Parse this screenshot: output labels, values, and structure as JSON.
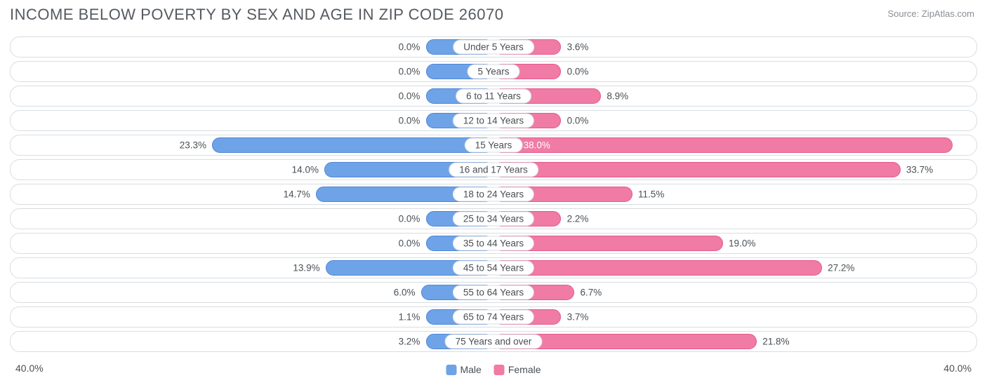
{
  "title": "INCOME BELOW POVERTY BY SEX AND AGE IN ZIP CODE 26070",
  "source": "Source: ZipAtlas.com",
  "axis_max_label": "40.0%",
  "legend": {
    "male": "Male",
    "female": "Female"
  },
  "chart": {
    "type": "diverging-bar",
    "axis_max": 40.0,
    "min_bar_pct": 14.0,
    "track_width_pct": 14.0,
    "colors": {
      "male_bar": "#6ea3e8",
      "male_border": "#4f86d6",
      "male_track_fill": "#e2edfa",
      "male_track_border": "#c9dbf2",
      "female_bar": "#f07ba4",
      "female_border": "#e55a8c",
      "female_track_fill": "#fde7ef",
      "female_track_border": "#f5cddd",
      "row_border": "#d8dde2",
      "text": "#4a4f54",
      "title_text": "#555a5f",
      "source_text": "#8a8f94",
      "background": "#ffffff"
    },
    "rows": [
      {
        "age": "Under 5 Years",
        "male": 0.0,
        "female": 3.6
      },
      {
        "age": "5 Years",
        "male": 0.0,
        "female": 0.0
      },
      {
        "age": "6 to 11 Years",
        "male": 0.0,
        "female": 8.9
      },
      {
        "age": "12 to 14 Years",
        "male": 0.0,
        "female": 0.0
      },
      {
        "age": "15 Years",
        "male": 23.3,
        "female": 38.0
      },
      {
        "age": "16 and 17 Years",
        "male": 14.0,
        "female": 33.7
      },
      {
        "age": "18 to 24 Years",
        "male": 14.7,
        "female": 11.5
      },
      {
        "age": "25 to 34 Years",
        "male": 0.0,
        "female": 2.2
      },
      {
        "age": "35 to 44 Years",
        "male": 0.0,
        "female": 19.0
      },
      {
        "age": "45 to 54 Years",
        "male": 13.9,
        "female": 27.2
      },
      {
        "age": "55 to 64 Years",
        "male": 6.0,
        "female": 6.7
      },
      {
        "age": "65 to 74 Years",
        "male": 1.1,
        "female": 3.7
      },
      {
        "age": "75 Years and over",
        "male": 3.2,
        "female": 21.8
      }
    ]
  }
}
